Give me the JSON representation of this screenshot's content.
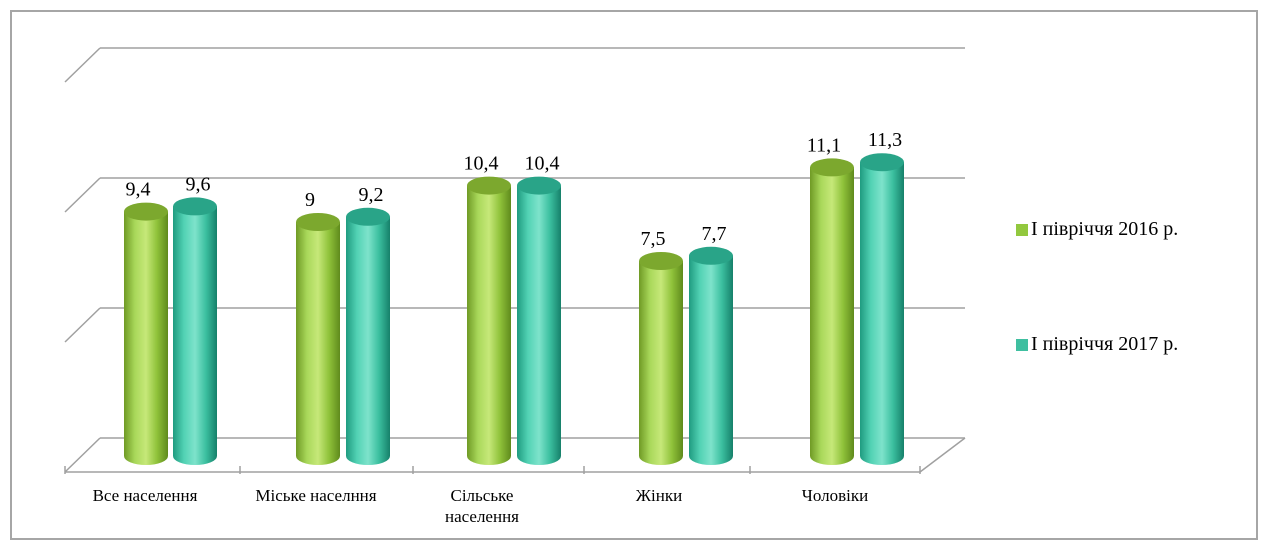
{
  "chart_data": {
    "type": "bar",
    "categories": [
      "Все населення",
      "Міське населння",
      "Сільське населення",
      "Жінки",
      "Чоловіки"
    ],
    "series": [
      {
        "name": "І півріччя 2016 р.",
        "values": [
          9.4,
          9,
          10.4,
          7.5,
          11.1
        ],
        "labels": [
          "9,4",
          "9",
          "10,4",
          "7,5",
          "11,1"
        ],
        "color": "#92c83e"
      },
      {
        "name": "І півріччя 2017 р.",
        "values": [
          9.6,
          9.2,
          10.4,
          7.7,
          11.3
        ],
        "labels": [
          "9,6",
          "9,2",
          "10,4",
          "7,7",
          "11,3"
        ],
        "color": "#3fbfa0"
      }
    ],
    "ylim": [
      0,
      15
    ],
    "grid": true,
    "legend_position": "right",
    "style": "3d-cylinder"
  },
  "legend": {
    "item1": "І півріччя 2016 р.",
    "item2": "І півріччя 2017 р."
  }
}
